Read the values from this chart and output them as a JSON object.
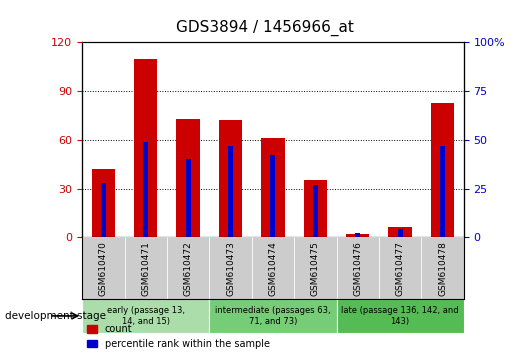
{
  "title": "GDS3894 / 1456966_at",
  "samples": [
    "GSM610470",
    "GSM610471",
    "GSM610472",
    "GSM610473",
    "GSM610474",
    "GSM610475",
    "GSM610476",
    "GSM610477",
    "GSM610478"
  ],
  "count_values": [
    42,
    110,
    73,
    72,
    61,
    35,
    2,
    6,
    83
  ],
  "percentile_values": [
    28,
    49,
    40,
    47,
    42,
    27,
    2,
    4,
    47
  ],
  "ylim_left": [
    0,
    120
  ],
  "yticks_left": [
    0,
    30,
    60,
    90,
    120
  ],
  "ylim_right": [
    0,
    100
  ],
  "yticks_right": [
    0,
    25,
    50,
    75,
    100
  ],
  "bar_color_count": "#cc0000",
  "bar_color_pct": "#0000cc",
  "bg_plot": "#ffffff",
  "bg_xtick": "#cccccc",
  "groups": [
    {
      "label": "early (passage 13,\n14, and 15)",
      "start": 0,
      "end": 3,
      "color": "#aaddaa"
    },
    {
      "label": "intermediate (passages 63,\n71, and 73)",
      "start": 3,
      "end": 6,
      "color": "#77cc77"
    },
    {
      "label": "late (passage 136, 142, and\n143)",
      "start": 6,
      "end": 9,
      "color": "#55bb55"
    }
  ],
  "dev_stage_label": "development stage",
  "legend_count": "count",
  "legend_pct": "percentile rank within the sample",
  "right_axis_label_color": "#0000cc",
  "left_axis_label_color": "#cc0000",
  "title_fontsize": 11,
  "bar_width": 0.55,
  "pct_bar_width": 0.12
}
